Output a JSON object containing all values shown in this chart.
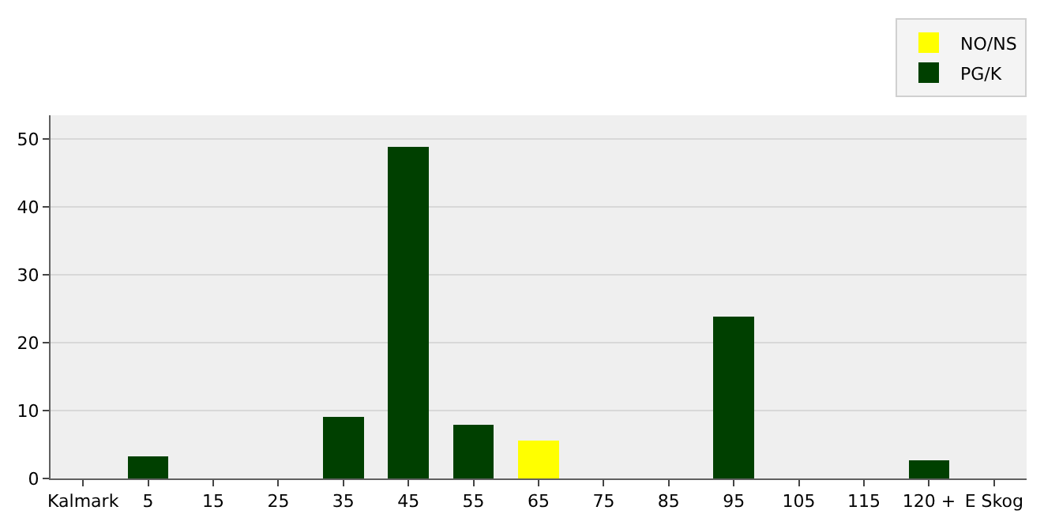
{
  "chart_data": {
    "type": "bar",
    "stacked": true,
    "categories": [
      "Kalmark",
      "5",
      "15",
      "25",
      "35",
      "45",
      "55",
      "65",
      "75",
      "85",
      "95",
      "105",
      "115",
      "120 +",
      "E Skog"
    ],
    "series": [
      {
        "name": "NO/NS",
        "color": "#ffff00",
        "values": [
          null,
          null,
          null,
          null,
          null,
          null,
          null,
          5.5,
          null,
          null,
          null,
          null,
          null,
          null,
          null
        ]
      },
      {
        "name": "PG/K",
        "color": "#004000",
        "values": [
          null,
          3.1,
          null,
          null,
          9.0,
          48.7,
          7.8,
          null,
          null,
          null,
          23.7,
          null,
          null,
          2.6,
          null
        ]
      }
    ],
    "ylim": [
      0,
      53.5
    ],
    "yticks": [
      0,
      10,
      20,
      30,
      40,
      50
    ],
    "grid": "y",
    "legend": "top right"
  }
}
